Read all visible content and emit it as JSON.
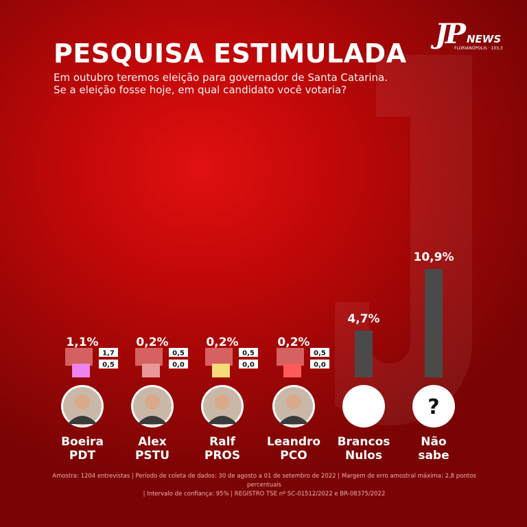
{
  "header": {
    "title": "PESQUISA ESTIMULADA",
    "subtitle_line1": "Em outubro teremos eleição para governador de Santa Catarina.",
    "subtitle_line2": "Se a eleição fosse hoje, em qual candidato você votaria?"
  },
  "logo": {
    "mark": "JP",
    "brand": "NEWS",
    "city": "FLORIANÓPOLIS · 103,3"
  },
  "chart_data": {
    "type": "bar",
    "unit": "%",
    "categories": [
      "Boeira PDT",
      "Alex PSTU",
      "Ralf PROS",
      "Leandro PCO",
      "Brancos Nulos",
      "Não sabe"
    ],
    "values": [
      1.1,
      0.2,
      0.2,
      0.2,
      4.7,
      10.9
    ],
    "value_labels": [
      "1,1%",
      "0,2%",
      "0,2%",
      "0,2%",
      "4,7%",
      "10,9%"
    ],
    "candidates": [
      {
        "name": "Boeira",
        "party": "PDT",
        "label": "1,1%",
        "sub_values": [
          "1,7",
          "0,5"
        ],
        "color": "#ee82ee",
        "photo": "person-photo",
        "kind": "candidate"
      },
      {
        "name": "Alex",
        "party": "PSTU",
        "label": "0,2%",
        "sub_values": [
          "0,5",
          "0,0"
        ],
        "color": "#e89898",
        "photo": "person-photo",
        "kind": "candidate"
      },
      {
        "name": "Ralf",
        "party": "PROS",
        "label": "0,2%",
        "sub_values": [
          "0,5",
          "0,0"
        ],
        "color": "#f5dc78",
        "photo": "person-photo",
        "kind": "candidate"
      },
      {
        "name": "Leandro",
        "party": "PCO",
        "label": "0,2%",
        "sub_values": [
          "0,5",
          "0,0"
        ],
        "color": "#ff5a5a",
        "photo": "person-photo",
        "kind": "candidate"
      },
      {
        "name": "Brancos",
        "party": "Nulos",
        "label": "4,7%",
        "value": 4.7,
        "color": "#4a4a4a",
        "photo": "blank-circle",
        "kind": "bar"
      },
      {
        "name": "Não",
        "party": "sabe",
        "label": "10,9%",
        "value": 10.9,
        "color": "#4a4a4a",
        "photo": "question-mark-icon",
        "question": "?",
        "kind": "bar"
      }
    ],
    "grid": false,
    "legend": "none"
  },
  "footer": {
    "line1": "Amostra: 1204 entrevistas | Período de coleta de dados: 30 de agosto a 01 de setembro de 2022 | Margem de erro amostral máxima: 2,8 pontos percentuais",
    "line2": "| Intervalo de confiança: 95% | REGISTRO TSE nº SC-01512/2022 e BR-08375/2022"
  }
}
